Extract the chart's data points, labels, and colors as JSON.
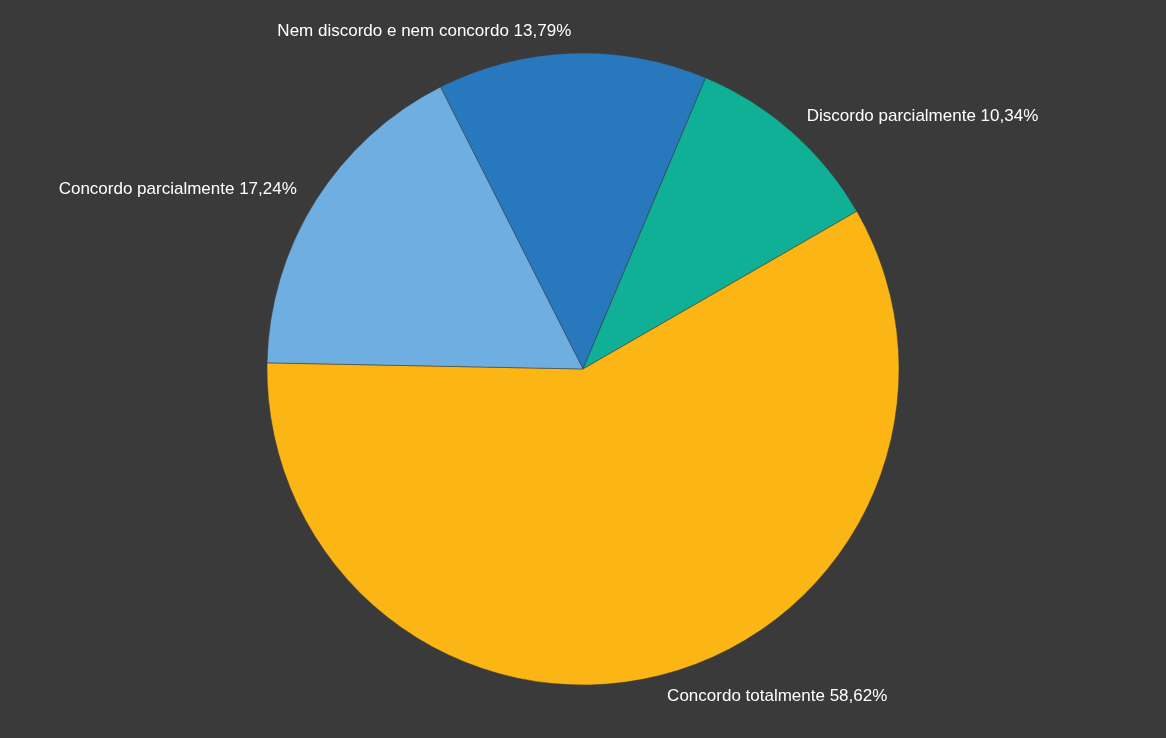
{
  "chart_data": {
    "type": "pie",
    "categories": [
      "Nem discordo e nem concordo",
      "Discordo parcialmente",
      "Concordo totalmente",
      "Concordo parcialmente"
    ],
    "values": [
      13.79,
      10.34,
      58.62,
      17.24
    ],
    "colors": [
      "#2878be",
      "#10b096",
      "#fbb616",
      "#6eaee0"
    ],
    "value_labels": [
      "13,79%",
      "10,34%",
      "58,62%",
      "17,24%"
    ],
    "legend": false
  }
}
